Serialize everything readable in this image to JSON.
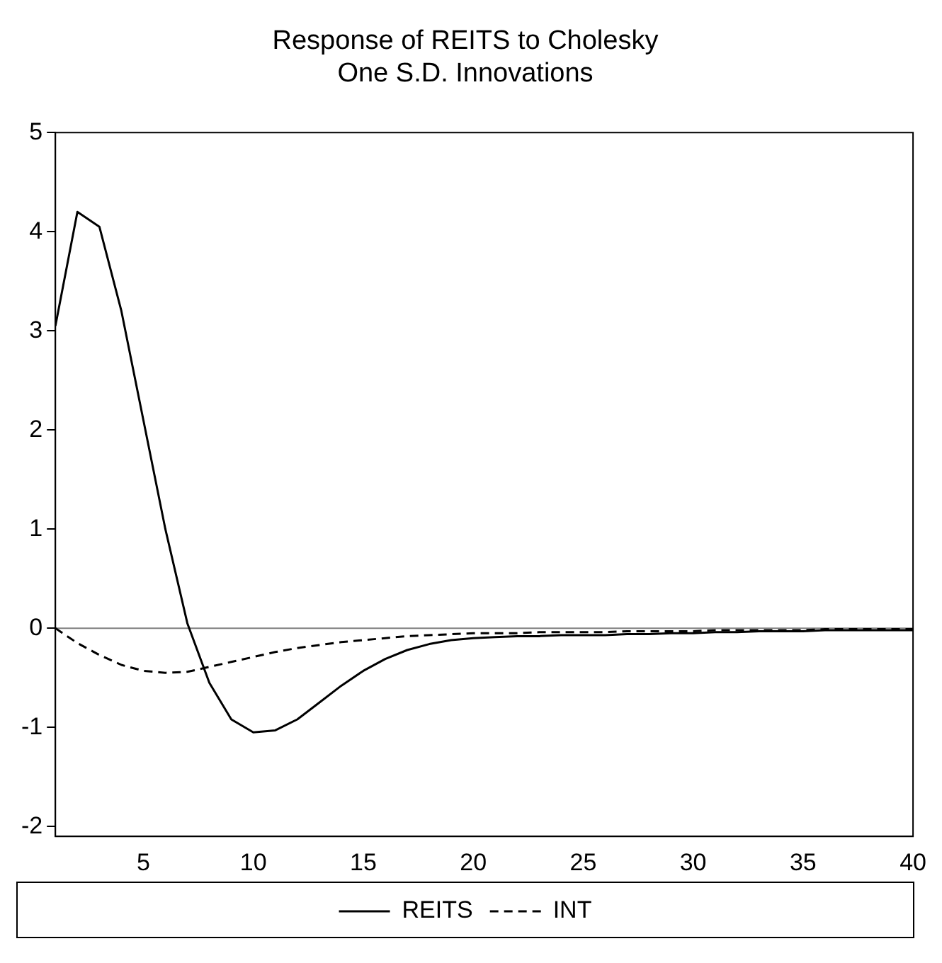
{
  "chart_data": {
    "type": "line",
    "title": "Response of REITS to Cholesky\nOne S.D. Innovations",
    "x": [
      1,
      2,
      3,
      4,
      5,
      6,
      7,
      8,
      9,
      10,
      11,
      12,
      13,
      14,
      15,
      16,
      17,
      18,
      19,
      20,
      21,
      22,
      23,
      24,
      25,
      26,
      27,
      28,
      29,
      30,
      31,
      32,
      33,
      34,
      35,
      36,
      37,
      38,
      39,
      40
    ],
    "series": [
      {
        "name": "REITS",
        "color": "#000000",
        "line_style": "solid",
        "values": [
          3.05,
          4.2,
          4.05,
          3.2,
          2.1,
          1.0,
          0.05,
          -0.55,
          -0.92,
          -1.05,
          -1.03,
          -0.92,
          -0.75,
          -0.58,
          -0.43,
          -0.31,
          -0.22,
          -0.16,
          -0.12,
          -0.1,
          -0.09,
          -0.08,
          -0.08,
          -0.07,
          -0.07,
          -0.07,
          -0.06,
          -0.06,
          -0.05,
          -0.05,
          -0.04,
          -0.04,
          -0.03,
          -0.03,
          -0.03,
          -0.02,
          -0.02,
          -0.02,
          -0.02,
          -0.02
        ]
      },
      {
        "name": "INT",
        "color": "#000000",
        "line_style": "dashed",
        "values": [
          0,
          -0.15,
          -0.27,
          -0.37,
          -0.43,
          -0.45,
          -0.44,
          -0.39,
          -0.34,
          -0.29,
          -0.24,
          -0.2,
          -0.17,
          -0.14,
          -0.12,
          -0.1,
          -0.08,
          -0.07,
          -0.06,
          -0.05,
          -0.05,
          -0.05,
          -0.04,
          -0.04,
          -0.04,
          -0.04,
          -0.03,
          -0.03,
          -0.03,
          -0.03,
          -0.02,
          -0.02,
          -0.02,
          -0.02,
          -0.02,
          -0.01,
          -0.01,
          -0.01,
          -0.01,
          -0.01
        ]
      }
    ],
    "xlim": [
      1,
      40
    ],
    "xticks": [
      5,
      10,
      15,
      20,
      25,
      30,
      35,
      40
    ],
    "ylim": [
      -2.1,
      5
    ],
    "yticks": [
      -2,
      -1,
      0,
      1,
      2,
      3,
      4,
      5
    ],
    "ref_lines": [
      {
        "axis": "y",
        "value": 0,
        "color": "#808080"
      }
    ],
    "grid": false,
    "legend": "bottom",
    "marker": "none"
  }
}
